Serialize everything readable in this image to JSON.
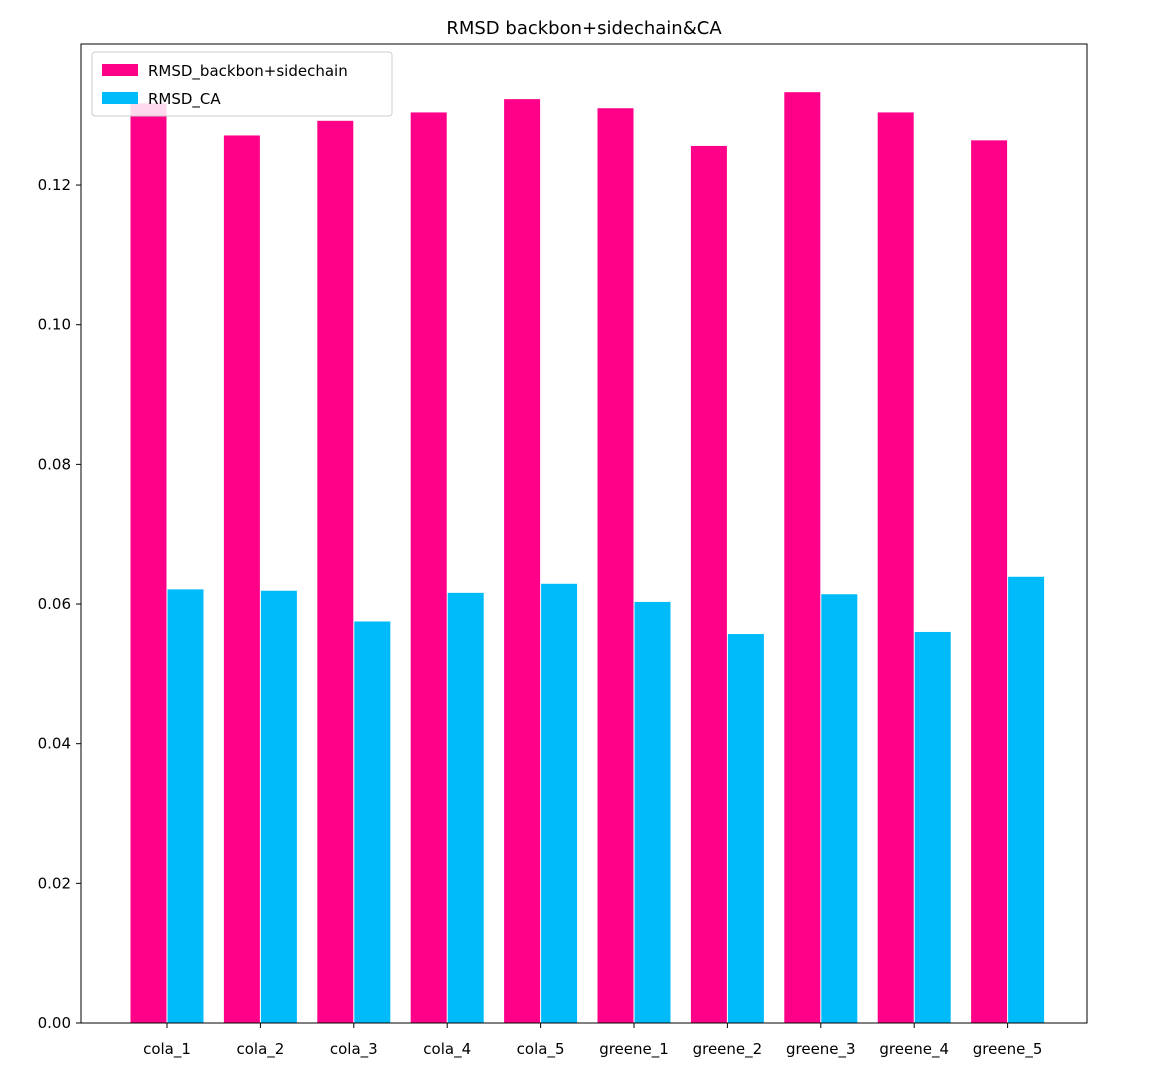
{
  "chart_data": {
    "type": "bar",
    "title": "RMSD backbon+sidechain&CA",
    "xlabel": "",
    "ylabel": "",
    "categories": [
      "cola_1",
      "cola_2",
      "cola_3",
      "cola_4",
      "cola_5",
      "greene_1",
      "greene_2",
      "greene_3",
      "greene_4",
      "greene_5"
    ],
    "series": [
      {
        "name": "RMSD_backbon+sidechain",
        "color": "#ff0088",
        "values": [
          0.1317,
          0.1271,
          0.1292,
          0.1304,
          0.1323,
          0.131,
          0.1256,
          0.1333,
          0.1304,
          0.1264
        ]
      },
      {
        "name": "RMSD_CA",
        "color": "#00bbf9",
        "values": [
          0.0621,
          0.0619,
          0.0575,
          0.0616,
          0.0629,
          0.0603,
          0.0557,
          0.0614,
          0.056,
          0.0639
        ]
      }
    ],
    "ylim": [
      0,
      0.1402
    ],
    "yticks": [
      0.0,
      0.02,
      0.04,
      0.06,
      0.08,
      0.1,
      0.12
    ],
    "ytick_labels": [
      "0.00",
      "0.02",
      "0.04",
      "0.06",
      "0.08",
      "0.10",
      "0.12"
    ],
    "grid": false,
    "legend_position": "top-left"
  }
}
